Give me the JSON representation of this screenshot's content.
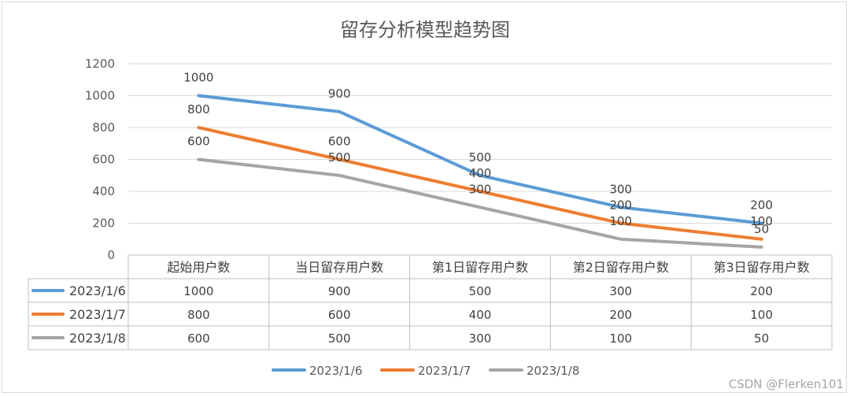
{
  "chart_data": {
    "type": "line",
    "title": "留存分析模型趋势图",
    "categories": [
      "起始用户数",
      "当日留存用户数",
      "第1日留存用户数",
      "第2日留存用户数",
      "第3日留存用户数"
    ],
    "ylim": [
      0,
      1200
    ],
    "yticks": [
      0,
      200,
      400,
      600,
      800,
      1000,
      1200
    ],
    "grid": true,
    "legend": "bottom",
    "data_table": true,
    "series": [
      {
        "name": "2023/1/6",
        "color": "#5b9bd5",
        "values": [
          1000,
          900,
          500,
          300,
          200
        ]
      },
      {
        "name": "2023/1/7",
        "color": "#ed7d31",
        "values": [
          800,
          600,
          400,
          200,
          100
        ]
      },
      {
        "name": "2023/1/8",
        "color": "#a5a5a5",
        "values": [
          600,
          500,
          300,
          100,
          50
        ]
      }
    ]
  },
  "watermark": "CSDN @Flerken101"
}
